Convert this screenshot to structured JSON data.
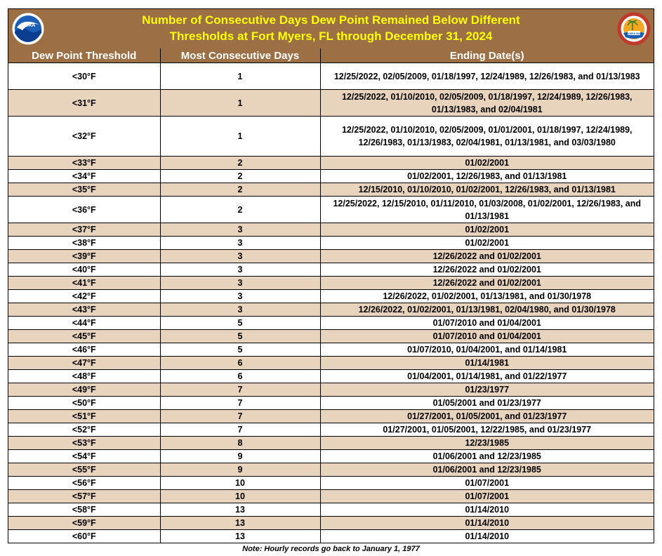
{
  "title": {
    "line1": "Number of Consecutive Days Dew Point Remained Below Different",
    "line2": "Thresholds at Fort Myers, FL through December 31, 2024"
  },
  "logos": {
    "left": {
      "text": "NOAA",
      "colors": {
        "ring": "#ffffff",
        "sky": "#1a5fb4",
        "water": "#0b3d91"
      }
    },
    "right": {
      "text": "NATIONAL WEATHER SERVICE",
      "sub": "TAMPA BAY",
      "colors": {
        "ring": "#c0392b",
        "sky": "#f5a623"
      }
    }
  },
  "colors": {
    "header_bg": "#9c6f45",
    "title_text": "#ffff00",
    "alt_row": "#e8d3bd"
  },
  "columns": [
    "Dew Point Threshold",
    "Most Consecutive Days",
    "Ending Date(s)"
  ],
  "rows": [
    {
      "t": "<30°F",
      "d": "1",
      "e": "12/25/2022, 02/05/2009, 01/18/1997, 12/24/1989, 12/26/1983, and 01/13/1983",
      "lines": 2
    },
    {
      "t": "<31°F",
      "d": "1",
      "e": "12/25/2022, 01/10/2010, 02/05/2009, 01/18/1997, 12/24/1989, 12/26/1983, 01/13/1983, and 02/04/1981",
      "lines": 2
    },
    {
      "t": "<32°F",
      "d": "1",
      "e": "12/25/2022, 01/10/2010, 02/05/2009, 01/01/2001, 01/18/1997, 12/24/1989, 12/26/1983, 01/13/1983, 02/04/1981, 01/13/1981, and 03/03/1980",
      "lines": 3
    },
    {
      "t": "<33°F",
      "d": "2",
      "e": "01/02/2001",
      "lines": 1
    },
    {
      "t": "<34°F",
      "d": "2",
      "e": "01/02/2001, 12/26/1983, and 01/13/1981",
      "lines": 1
    },
    {
      "t": "<35°F",
      "d": "2",
      "e": "12/15/2010, 01/10/2010, 01/02/2001, 12/26/1983, and 01/13/1981",
      "lines": 1
    },
    {
      "t": "<36°F",
      "d": "2",
      "e": "12/25/2022, 12/15/2010, 01/11/2010, 01/03/2008, 01/02/2001, 12/26/1983, and 01/13/1981",
      "lines": 2
    },
    {
      "t": "<37°F",
      "d": "3",
      "e": "01/02/2001",
      "lines": 1
    },
    {
      "t": "<38°F",
      "d": "3",
      "e": "01/02/2001",
      "lines": 1
    },
    {
      "t": "<39°F",
      "d": "3",
      "e": "12/26/2022 and 01/02/2001",
      "lines": 1
    },
    {
      "t": "<40°F",
      "d": "3",
      "e": "12/26/2022 and 01/02/2001",
      "lines": 1
    },
    {
      "t": "<41°F",
      "d": "3",
      "e": "12/26/2022 and 01/02/2001",
      "lines": 1
    },
    {
      "t": "<42°F",
      "d": "3",
      "e": "12/26/2022, 01/02/2001, 01/13/1981, and 01/30/1978",
      "lines": 1
    },
    {
      "t": "<43°F",
      "d": "3",
      "e": "12/26/2022, 01/02/2001, 01/13/1981, 02/04/1980, and 01/30/1978",
      "lines": 1
    },
    {
      "t": "<44°F",
      "d": "5",
      "e": "01/07/2010 and 01/04/2001",
      "lines": 1
    },
    {
      "t": "<45°F",
      "d": "5",
      "e": "01/07/2010 and 01/04/2001",
      "lines": 1
    },
    {
      "t": "<46°F",
      "d": "5",
      "e": "01/07/2010, 01/04/2001, and 01/14/1981",
      "lines": 1
    },
    {
      "t": "<47°F",
      "d": "6",
      "e": "01/14/1981",
      "lines": 1
    },
    {
      "t": "<48°F",
      "d": "6",
      "e": "01/04/2001, 01/14/1981, and 01/22/1977",
      "lines": 1
    },
    {
      "t": "<49°F",
      "d": "7",
      "e": "01/23/1977",
      "lines": 1
    },
    {
      "t": "<50°F",
      "d": "7",
      "e": "01/05/2001 and 01/23/1977",
      "lines": 1
    },
    {
      "t": "<51°F",
      "d": "7",
      "e": "01/27/2001, 01/05/2001, and 01/23/1977",
      "lines": 1
    },
    {
      "t": "<52°F",
      "d": "7",
      "e": "01/27/2001, 01/05/2001, 12/22/1985, and 01/23/1977",
      "lines": 1
    },
    {
      "t": "<53°F",
      "d": "8",
      "e": "12/23/1985",
      "lines": 1
    },
    {
      "t": "<54°F",
      "d": "9",
      "e": "01/06/2001 and 12/23/1985",
      "lines": 1
    },
    {
      "t": "<55°F",
      "d": "9",
      "e": "01/06/2001 and 12/23/1985",
      "lines": 1
    },
    {
      "t": "<56°F",
      "d": "10",
      "e": "01/07/2001",
      "lines": 1
    },
    {
      "t": "<57°F",
      "d": "10",
      "e": "01/07/2001",
      "lines": 1
    },
    {
      "t": "<58°F",
      "d": "13",
      "e": "01/14/2010",
      "lines": 1
    },
    {
      "t": "<59°F",
      "d": "13",
      "e": "01/14/2010",
      "lines": 1
    },
    {
      "t": "<60°F",
      "d": "13",
      "e": "01/14/2010",
      "lines": 1
    }
  ],
  "note": "Note: Hourly records go back to January 1, 1977"
}
